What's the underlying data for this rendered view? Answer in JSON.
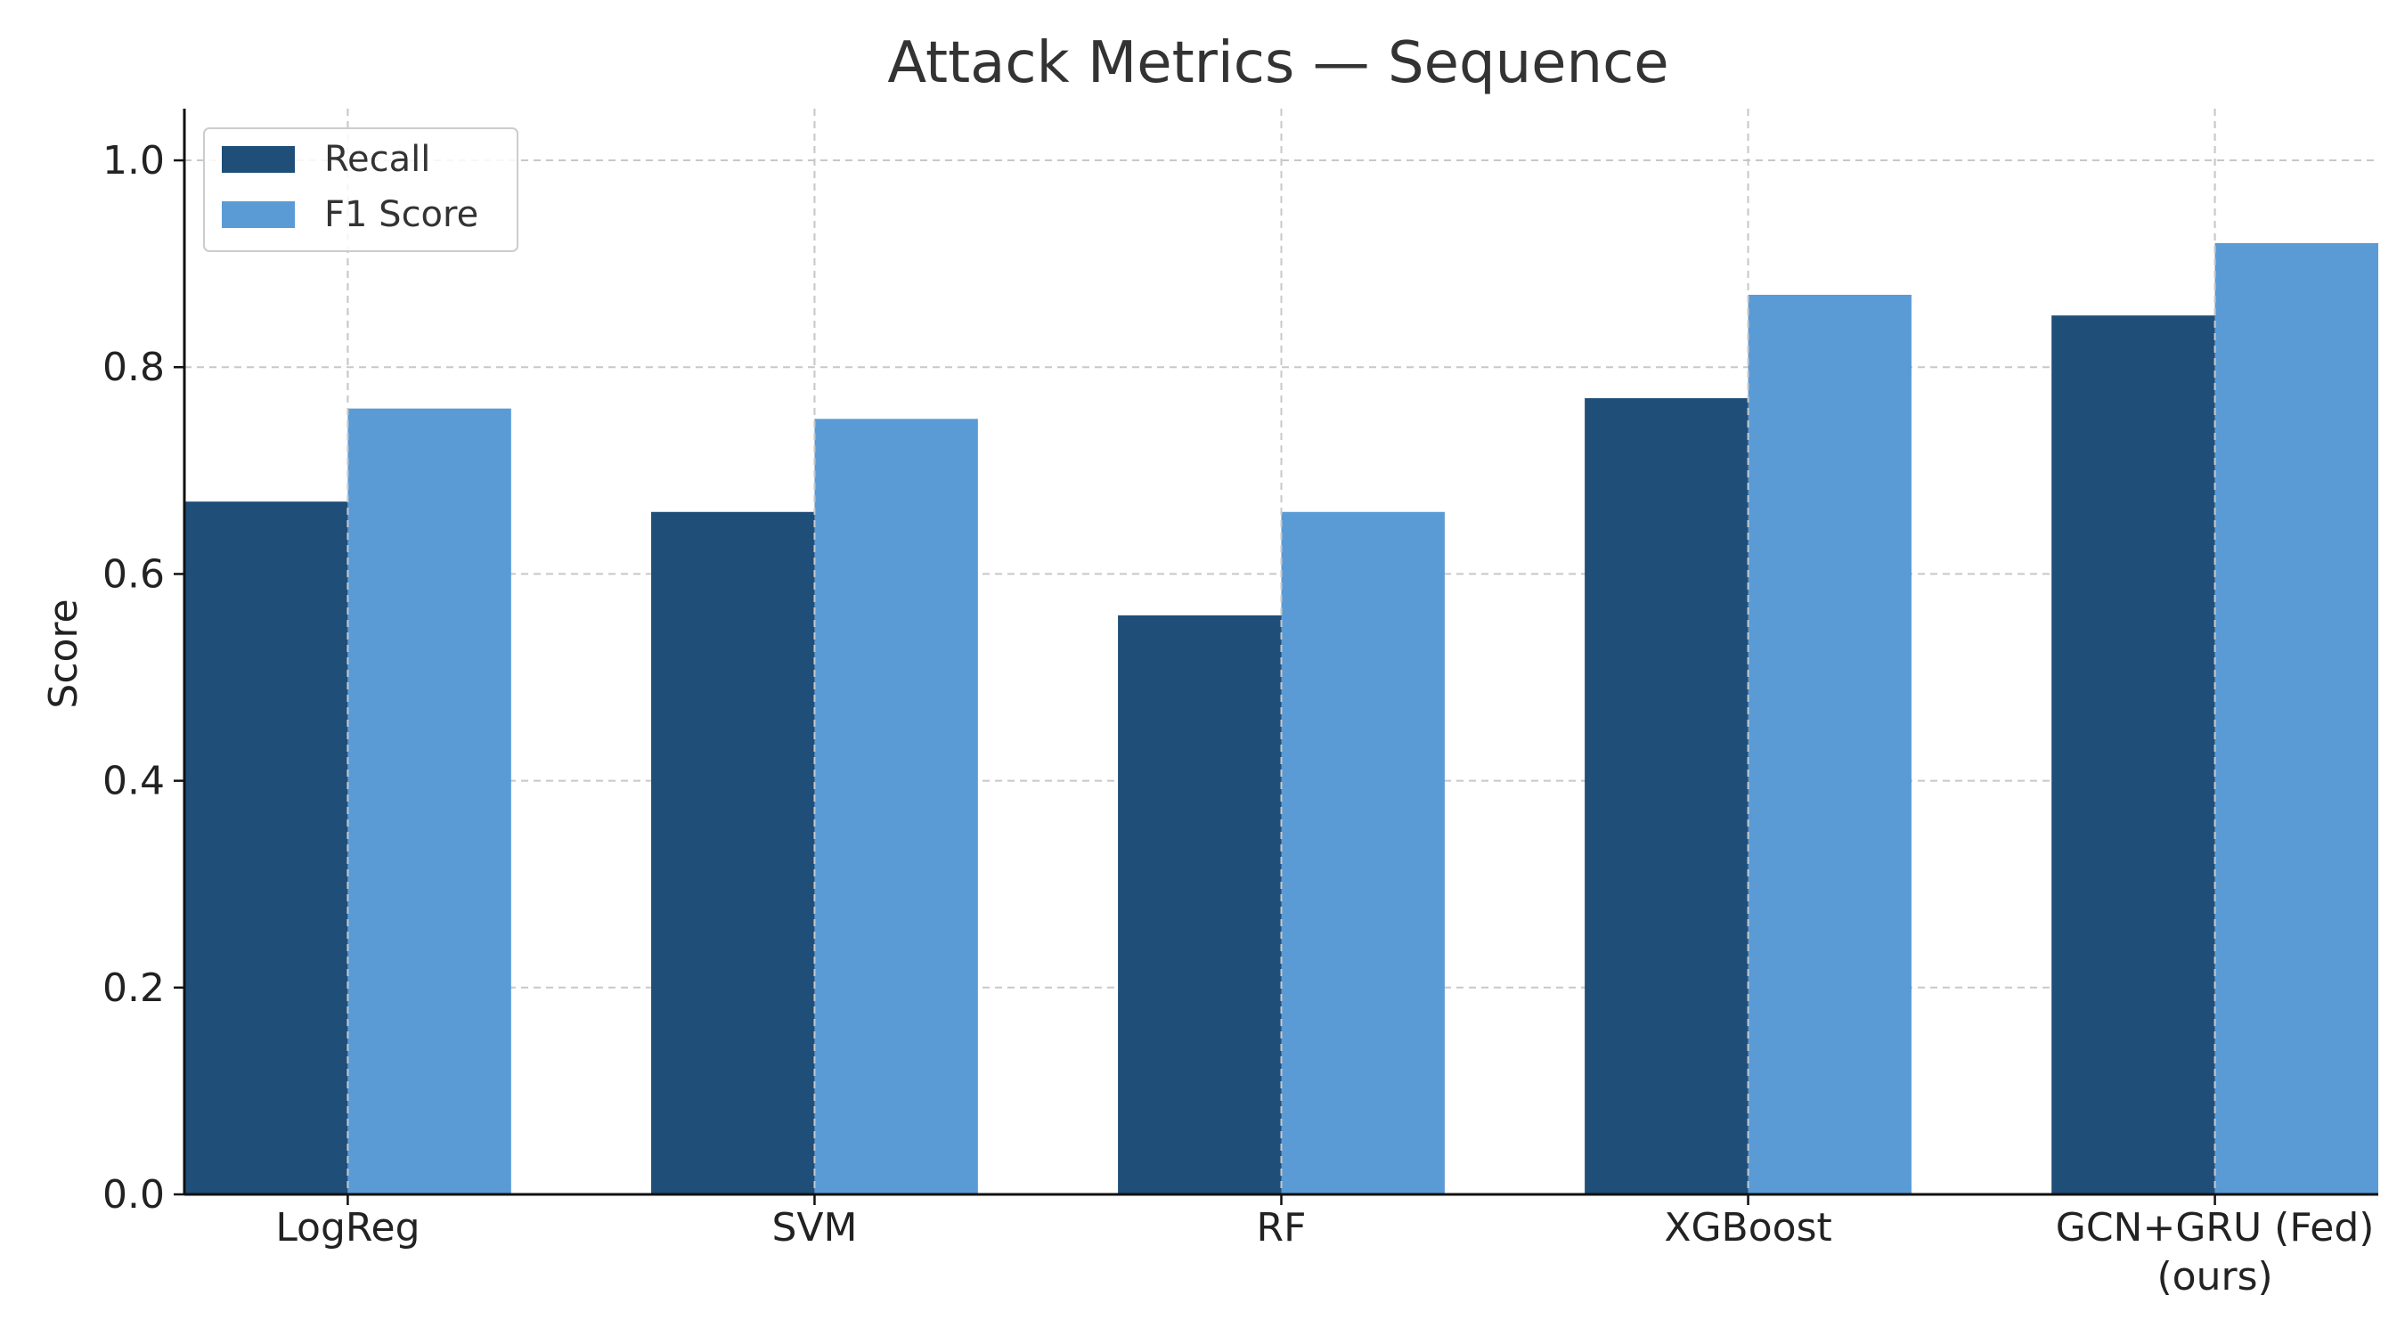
{
  "chart_data": {
    "type": "bar",
    "title": "Attack Metrics — Sequence",
    "xlabel": "",
    "ylabel": "Score",
    "categories": [
      "LogReg",
      "SVM",
      "RF",
      "XGBoost",
      "GCN+GRU (Fed)\n(ours)"
    ],
    "series": [
      {
        "name": "Recall",
        "color": "#1f4e79",
        "values": [
          0.67,
          0.66,
          0.56,
          0.77,
          0.85
        ]
      },
      {
        "name": "F1 Score",
        "color": "#5b9bd5",
        "values": [
          0.76,
          0.75,
          0.66,
          0.87,
          0.92
        ]
      }
    ],
    "ylim": [
      0,
      1.05
    ],
    "yticks": [
      0.0,
      0.2,
      0.4,
      0.6,
      0.8,
      1.0
    ],
    "ytick_labels": [
      "0.0",
      "0.2",
      "0.4",
      "0.6",
      "0.8",
      "1.0"
    ],
    "grid": true,
    "legend_position": "top-left"
  }
}
